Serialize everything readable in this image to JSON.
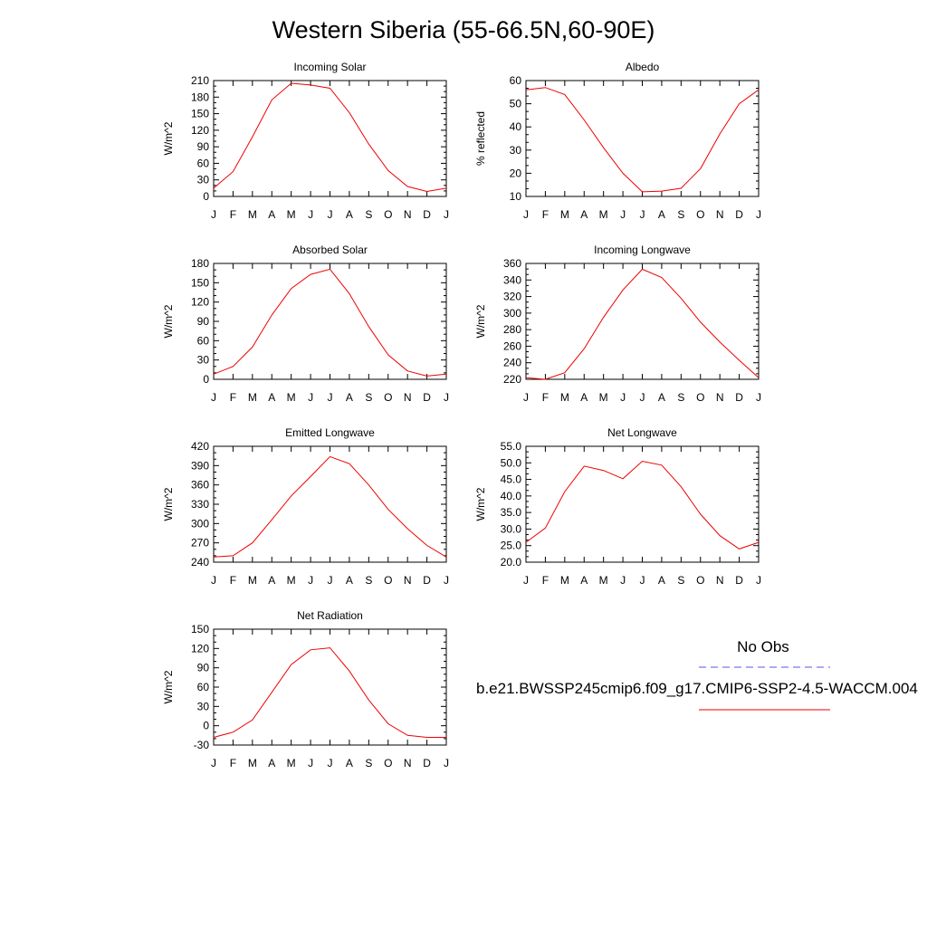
{
  "page": {
    "title": "Western Siberia (55-66.5N,60-90E)"
  },
  "legend": {
    "entries": [
      {
        "label": "No Obs",
        "color": "#5555ee",
        "style": "dashed"
      },
      {
        "label": "b.e21.BWSSP245cmip6.f09_g17.CMIP6-SSP2-4.5-WACCM.004",
        "color": "#ee0000",
        "style": "solid"
      }
    ]
  },
  "chart_data": [
    {
      "type": "line",
      "title": "Incoming Solar",
      "ylabel": "W/m^2",
      "x": [
        "J",
        "F",
        "M",
        "A",
        "M",
        "J",
        "J",
        "A",
        "S",
        "O",
        "N",
        "D",
        "J"
      ],
      "ylim": [
        0,
        210
      ],
      "yticks": [
        "0",
        "30",
        "60",
        "90",
        "120",
        "150",
        "180",
        "210"
      ],
      "series": [
        {
          "color": "#ee0000",
          "values": [
            15,
            45,
            108,
            175,
            205,
            202,
            196,
            152,
            95,
            47,
            18,
            9,
            15
          ]
        }
      ]
    },
    {
      "type": "line",
      "title": "Albedo",
      "ylabel": "% reflected",
      "x": [
        "J",
        "F",
        "M",
        "A",
        "M",
        "J",
        "J",
        "A",
        "S",
        "O",
        "N",
        "D",
        "J"
      ],
      "ylim": [
        10,
        60
      ],
      "yticks": [
        "10",
        "20",
        "30",
        "40",
        "50",
        "60"
      ],
      "series": [
        {
          "color": "#ee0000",
          "values": [
            56,
            57,
            54,
            43,
            31,
            20,
            12,
            12.3,
            13.5,
            22,
            37,
            50,
            56
          ]
        }
      ]
    },
    {
      "type": "line",
      "title": "Absorbed Solar",
      "ylabel": "W/m^2",
      "x": [
        "J",
        "F",
        "M",
        "A",
        "M",
        "J",
        "J",
        "A",
        "S",
        "O",
        "N",
        "D",
        "J"
      ],
      "ylim": [
        0,
        180
      ],
      "yticks": [
        "0",
        "30",
        "60",
        "90",
        "120",
        "150",
        "180"
      ],
      "series": [
        {
          "color": "#ee0000",
          "values": [
            8,
            20,
            50,
            100,
            141,
            163,
            171,
            133,
            82,
            38,
            13,
            5,
            8
          ]
        }
      ]
    },
    {
      "type": "line",
      "title": "Incoming Longwave",
      "ylabel": "W/m^2",
      "x": [
        "J",
        "F",
        "M",
        "A",
        "M",
        "J",
        "J",
        "A",
        "S",
        "O",
        "N",
        "D",
        "J"
      ],
      "ylim": [
        220,
        360
      ],
      "yticks": [
        "220",
        "240",
        "260",
        "280",
        "300",
        "320",
        "340",
        "360"
      ],
      "series": [
        {
          "color": "#ee0000",
          "values": [
            222,
            220,
            228,
            257,
            295,
            328,
            353,
            343,
            318,
            289,
            265,
            243,
            222
          ]
        }
      ]
    },
    {
      "type": "line",
      "title": "Emitted Longwave",
      "ylabel": "W/m^2",
      "x": [
        "J",
        "F",
        "M",
        "A",
        "M",
        "J",
        "J",
        "A",
        "S",
        "O",
        "N",
        "D",
        "J"
      ],
      "ylim": [
        240,
        420
      ],
      "yticks": [
        "240",
        "270",
        "300",
        "330",
        "360",
        "390",
        "420"
      ],
      "series": [
        {
          "color": "#ee0000",
          "values": [
            248,
            250,
            270,
            306,
            343,
            373,
            404,
            393,
            360,
            322,
            292,
            266,
            248
          ]
        }
      ]
    },
    {
      "type": "line",
      "title": "Net Longwave",
      "ylabel": "W/m^2",
      "x": [
        "J",
        "F",
        "M",
        "A",
        "M",
        "J",
        "J",
        "A",
        "S",
        "O",
        "N",
        "D",
        "J"
      ],
      "ylim": [
        20,
        55
      ],
      "yticks": [
        "20.0",
        "25.0",
        "30.0",
        "35.0",
        "40.0",
        "45.0",
        "50.0",
        "55.0"
      ],
      "series": [
        {
          "color": "#ee0000",
          "values": [
            26,
            30.3,
            41.3,
            49,
            47.7,
            45.2,
            50.5,
            49.3,
            42.8,
            34.5,
            28,
            24,
            26
          ]
        }
      ]
    },
    {
      "type": "line",
      "title": "Net Radiation",
      "ylabel": "W/m^2",
      "x": [
        "J",
        "F",
        "M",
        "A",
        "M",
        "J",
        "J",
        "A",
        "S",
        "O",
        "N",
        "D",
        "J"
      ],
      "ylim": [
        -30,
        150
      ],
      "yticks": [
        "-30",
        "0",
        "30",
        "60",
        "90",
        "120",
        "150"
      ],
      "series": [
        {
          "color": "#ee0000",
          "values": [
            -18,
            -10,
            9,
            52,
            95,
            118,
            121,
            85,
            40,
            3,
            -15,
            -18,
            -18
          ]
        }
      ]
    }
  ]
}
